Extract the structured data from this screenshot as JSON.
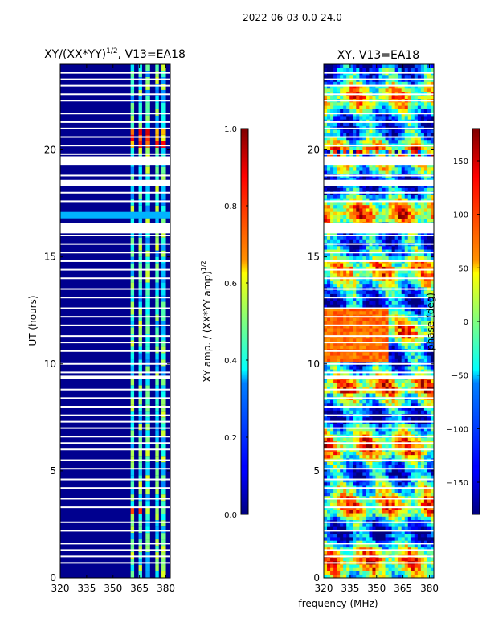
{
  "figure": {
    "suptitle": "2022-06-03 0.0-24.0"
  },
  "chart_data": [
    {
      "type": "heatmap",
      "id": "amp",
      "title": "XY/(XX*YY)",
      "title_sup": "1/2",
      "title_tail": ", V13=EA18",
      "xlabel": "",
      "ylabel": "UT (hours)",
      "xlim": [
        320,
        382.5
      ],
      "ylim": [
        0,
        24
      ],
      "xticks": [
        320,
        335,
        350,
        365,
        380
      ],
      "yticks": [
        0,
        5,
        10,
        15,
        20
      ],
      "band_x_ranges": [
        [
          360,
          362
        ],
        [
          364.5,
          366.5
        ],
        [
          368.5,
          371
        ],
        [
          374,
          376
        ],
        [
          377.5,
          380
        ]
      ],
      "gap_rows_ut": [
        0.7,
        1.0,
        1.3,
        1.6,
        2.2,
        2.6,
        3.3,
        3.7,
        4.2,
        4.6,
        5.1,
        5.5,
        6.0,
        6.3,
        6.6,
        7.0,
        7.3,
        7.6,
        8.0,
        8.4,
        8.8,
        9.6,
        10.0,
        10.6,
        11.0,
        11.3,
        11.8,
        12.2,
        12.6,
        13.1,
        13.5,
        14.0,
        14.4,
        14.8,
        15.2,
        15.6,
        16.0,
        17.6,
        18.0,
        18.8,
        19.8,
        20.2,
        20.6,
        21.0,
        21.3,
        21.7,
        22.3,
        22.6,
        23.0,
        23.3,
        23.6
      ],
      "wide_gaps_ut": [
        [
          9.3,
          9.45
        ],
        [
          16.1,
          16.6
        ],
        [
          18.3,
          18.6
        ],
        [
          19.3,
          19.7
        ]
      ],
      "colorbar": {
        "label": "XY amp. / (XX*YY amp)",
        "label_sup": "1/2",
        "range": [
          0.0,
          1.0
        ],
        "ticks": [
          "0.0",
          "0.2",
          "0.4",
          "0.6",
          "0.8",
          "1.0"
        ]
      }
    },
    {
      "type": "heatmap",
      "id": "phase",
      "title": "XY, V13=EA18",
      "xlabel": "frequency (MHz)",
      "ylabel": "",
      "xlim": [
        320,
        382.5
      ],
      "ylim": [
        0,
        24
      ],
      "xticks": [
        320,
        335,
        350,
        365,
        380
      ],
      "yticks": [
        0,
        5,
        10,
        15,
        20
      ],
      "colorbar": {
        "label": "phase (deg)",
        "range": [
          -180,
          180
        ],
        "ticks": [
          "150",
          "100",
          "50",
          "0",
          "−50",
          "−100",
          "−150"
        ]
      }
    }
  ]
}
